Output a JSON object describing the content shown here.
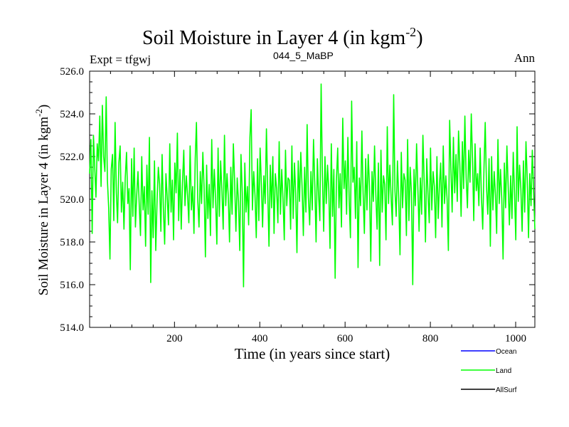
{
  "header": {
    "title_main": "Soil Moisture in Layer 4 (in kgm",
    "title_sup": "-2",
    "title_close": ")",
    "left": "Expt = tfgwj",
    "center": "044_5_MaBP",
    "right": "Ann"
  },
  "chart_data": {
    "type": "line",
    "title": "Soil Moisture in Layer 4 (in kgm-2)",
    "xlabel": "Time (in years since start)",
    "ylabel": "Soil Moisture in Layer 4 (in kgm-2)",
    "xlim": [
      1,
      1045
    ],
    "ylim": [
      514.0,
      526.0
    ],
    "x_ticks": [
      200,
      400,
      600,
      800,
      1000
    ],
    "x_tick_labels": [
      "200",
      "400",
      "600",
      "800",
      "1000"
    ],
    "y_ticks": [
      514,
      516,
      518,
      520,
      522,
      524,
      526
    ],
    "y_tick_labels": [
      "514.0",
      "516.0",
      "518.0",
      "520.0",
      "522.0",
      "524.0",
      "526.0"
    ],
    "ylabel_parts": {
      "main": "Soil Moisture in Layer 4 (in kgm",
      "sup": "-2",
      "close": ")"
    },
    "legend": [
      {
        "name": "Ocean",
        "color": "#0000ff"
      },
      {
        "name": "Land",
        "color": "#00ff00"
      },
      {
        "name": "AllSurf",
        "color": "#000000"
      }
    ],
    "series": [
      {
        "name": "Land",
        "color": "#00ff00",
        "start_year": 1,
        "end_year": 1045,
        "values": [
          521.2,
          522.8,
          518.4,
          523.0,
          521.5,
          520.1,
          522.6,
          521.8,
          523.9,
          520.6,
          524.4,
          522.0,
          521.3,
          524.8,
          520.9,
          519.6,
          517.2,
          521.4,
          522.1,
          519.0,
          523.6,
          520.3,
          518.9,
          521.7,
          522.5,
          519.4,
          520.8,
          518.6,
          521.0,
          522.2,
          519.8,
          520.5,
          516.7,
          521.9,
          519.2,
          522.4,
          518.7,
          520.2,
          521.3,
          519.7,
          518.3,
          522.0,
          519.5,
          520.6,
          517.8,
          521.6,
          519.3,
          522.9,
          516.1,
          520.4,
          518.2,
          521.8,
          517.6,
          519.9,
          521.5,
          520.7,
          518.5,
          522.1,
          519.6,
          517.9,
          521.2,
          520.1,
          518.8,
          522.6,
          519.4,
          520.9,
          518.1,
          521.7,
          520.3,
          523.1,
          519.0,
          521.4,
          518.6,
          520.8,
          522.3,
          519.7,
          521.1,
          520.2,
          518.9,
          522.5,
          519.5,
          520.6,
          518.4,
          521.9,
          523.6,
          520.0,
          518.7,
          521.3,
          519.8,
          522.2,
          520.5,
          517.3,
          521.6,
          519.1,
          520.7,
          518.3,
          522.8,
          519.6,
          521.4,
          520.0,
          517.9,
          522.4,
          519.2,
          521.8,
          520.4,
          518.6,
          523.0,
          519.7,
          521.2,
          520.1,
          518.0,
          521.5,
          519.3,
          522.6,
          520.8,
          518.5,
          521.0,
          519.9,
          517.6,
          522.1,
          520.3,
          515.9,
          521.7,
          519.4,
          520.6,
          518.8,
          522.9,
          524.2,
          519.5,
          521.3,
          520.2,
          518.2,
          521.9,
          519.0,
          522.4,
          520.7,
          518.7,
          521.1,
          519.8,
          523.3,
          520.4,
          517.8,
          521.6,
          519.6,
          522.0,
          518.4,
          521.2,
          520.5,
          518.9,
          522.7,
          519.3,
          521.4,
          520.0,
          518.1,
          522.3,
          519.7,
          521.0,
          520.9,
          518.6,
          522.5,
          519.1,
          521.7,
          520.3,
          517.5,
          521.8,
          519.9,
          522.2,
          520.6,
          518.3,
          521.5,
          519.4,
          523.5,
          520.1,
          518.8,
          521.3,
          519.5,
          522.8,
          520.7,
          518.0,
          521.9,
          520.2,
          519.0,
          525.4,
          521.1,
          518.5,
          522.0,
          519.8,
          521.6,
          520.4,
          517.7,
          522.6,
          519.2,
          521.4,
          516.3,
          520.9,
          522.4,
          519.6,
          521.2,
          518.7,
          523.8,
          520.5,
          521.8,
          519.3,
          522.9,
          520.0,
          518.2,
          524.6,
          520.8,
          521.5,
          519.1,
          522.7,
          516.8,
          521.0,
          519.7,
          523.2,
          520.3,
          518.4,
          521.9,
          519.5,
          522.1,
          520.6,
          517.1,
          521.3,
          519.9,
          522.5,
          520.2,
          518.6,
          521.7,
          516.9,
          522.3,
          519.4,
          521.1,
          520.7,
          518.1,
          523.4,
          519.8,
          521.6,
          520.1,
          518.8,
          524.9,
          520.4,
          519.2,
          521.8,
          520.0,
          517.4,
          522.2,
          519.6,
          521.2,
          520.9,
          518.3,
          522.8,
          519.0,
          521.5,
          520.3,
          516.0,
          521.4,
          519.7,
          522.6,
          520.5,
          518.5,
          521.0,
          519.3,
          523.0,
          520.8,
          518.0,
          521.9,
          520.2,
          518.9,
          522.4,
          519.5,
          521.3,
          520.6,
          518.2,
          522.0,
          519.1,
          520.7,
          521.7,
          518.7,
          522.5,
          519.8,
          521.1,
          520.0,
          517.6,
          523.7,
          521.4,
          519.4,
          522.9,
          520.3,
          522.1,
          519.9,
          523.2,
          521.6,
          519.2,
          522.7,
          520.5,
          523.9,
          521.0,
          519.6,
          522.3,
          520.8,
          524.0,
          521.8,
          519.0,
          522.6,
          520.4,
          521.2,
          519.7,
          522.4,
          520.1,
          518.6,
          521.5,
          523.6,
          520.6,
          519.3,
          521.9,
          517.8,
          522.0,
          519.5,
          521.3,
          520.2,
          518.4,
          522.8,
          519.8,
          521.4,
          520.0,
          517.2,
          521.7,
          519.6,
          522.5,
          520.7,
          518.8,
          521.1,
          519.1,
          522.2,
          520.3,
          518.1,
          523.4,
          519.9,
          521.6,
          520.5,
          518.5,
          521.8,
          519.4,
          522.7,
          520.9,
          518.2,
          521.2,
          519.7,
          522.3,
          520.4,
          518.6
        ]
      }
    ]
  }
}
